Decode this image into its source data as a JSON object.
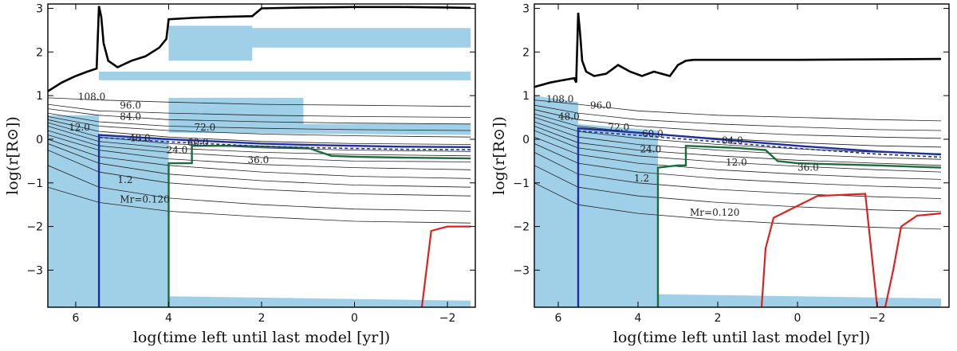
{
  "chart_data": [
    {
      "type": "line",
      "panel": "left",
      "xlabel": "log(time left until last model [yr])",
      "ylabel": "log(r[R⊙])",
      "xlim": [
        6.6,
        -2.6
      ],
      "ylim": [
        -3.85,
        3.1
      ],
      "xticks": [
        6,
        4,
        2,
        0,
        -2
      ],
      "xtick_labels": [
        "6",
        "4",
        "2",
        "0",
        "−2"
      ],
      "yticks": [
        3,
        2,
        1,
        0,
        -1,
        -2,
        -3
      ],
      "ytick_labels": [
        "3",
        "2",
        "1",
        "0",
        "−1",
        "−2",
        "−3"
      ],
      "colors": {
        "convective": "#9fd0e8",
        "surface": "#000000",
        "he_core": "#1f2e9a",
        "co_core": "#1d6b3a",
        "burning": "#e02020",
        "contour": "#222222"
      },
      "convective_zones": [
        {
          "x": [
            6.6,
            5.5,
            5.5,
            6.6
          ],
          "y": [
            0.55,
            0.55,
            -3.85,
            -3.85
          ]
        },
        {
          "x": [
            5.5,
            4.0,
            4.0,
            5.5
          ],
          "y": [
            0.1,
            0.0,
            -3.85,
            -3.85
          ]
        },
        {
          "x": [
            4.0,
            2.2,
            2.2,
            -2.5,
            -2.5,
            2.2,
            2.2,
            4.0
          ],
          "y": [
            2.6,
            2.6,
            2.55,
            2.55,
            2.1,
            2.1,
            1.8,
            1.8
          ]
        },
        {
          "x": [
            5.5,
            -2.5,
            -2.5,
            5.5
          ],
          "y": [
            1.55,
            1.55,
            1.35,
            1.35
          ]
        },
        {
          "x": [
            4.0,
            1.1,
            1.1,
            -2.5,
            -2.5,
            4.0
          ],
          "y": [
            0.95,
            0.95,
            0.35,
            0.35,
            0.1,
            0.15
          ]
        },
        {
          "x": [
            4.0,
            -2.5,
            -2.5,
            4.0
          ],
          "y": [
            -3.6,
            -3.7,
            -3.85,
            -3.85
          ]
        }
      ],
      "surface": {
        "x": [
          6.6,
          6.3,
          6.0,
          5.75,
          5.55,
          5.5,
          5.45,
          5.4,
          5.3,
          5.1,
          4.8,
          4.5,
          4.2,
          4.05,
          4.0,
          3.5,
          3.0,
          2.2,
          2.0,
          1.0,
          0.0,
          -1.0,
          -2.0,
          -2.5
        ],
        "y": [
          1.1,
          1.3,
          1.45,
          1.55,
          1.62,
          3.05,
          2.8,
          2.2,
          1.8,
          1.65,
          1.8,
          1.9,
          2.1,
          2.3,
          2.75,
          2.78,
          2.8,
          2.82,
          3.0,
          3.02,
          3.03,
          3.03,
          3.02,
          3.01
        ]
      },
      "he_core": {
        "x": [
          5.5,
          5.5,
          4.0,
          3.0,
          2.0,
          1.0,
          0.0,
          -1.0,
          -2.5
        ],
        "y": [
          -3.85,
          0.1,
          0.0,
          -0.05,
          -0.1,
          -0.13,
          -0.15,
          -0.17,
          -0.18
        ]
      },
      "co_core": {
        "x": [
          4.0,
          4.0,
          3.5,
          3.5,
          2.5,
          1.0,
          0.5,
          0.0,
          -1.0,
          -2.5
        ],
        "y": [
          -3.85,
          -0.55,
          -0.55,
          -0.15,
          -0.15,
          -0.2,
          -0.38,
          -0.4,
          -0.42,
          -0.44
        ]
      },
      "burning": {
        "x": [
          -1.45,
          -1.65,
          -2.0,
          -2.5
        ],
        "y": [
          -3.85,
          -2.1,
          -2.0,
          -2.0
        ]
      },
      "contours": [
        {
          "label": "108.0",
          "x": [
            6.6,
            5.5,
            4.0,
            2.0,
            0.0,
            -2.5
          ],
          "y": [
            0.95,
            0.9,
            0.85,
            0.8,
            0.78,
            0.75
          ]
        },
        {
          "label": "96.0",
          "x": [
            6.6,
            5.5,
            4.0,
            2.0,
            0.0,
            -2.5
          ],
          "y": [
            0.8,
            0.65,
            0.6,
            0.55,
            0.52,
            0.5
          ]
        },
        {
          "label": "84.0",
          "x": [
            6.6,
            5.5,
            4.0,
            2.0,
            0.0,
            -2.5
          ],
          "y": [
            0.7,
            0.55,
            0.45,
            0.4,
            0.37,
            0.35
          ]
        },
        {
          "label": "72.0",
          "x": [
            6.6,
            5.5,
            4.0,
            2.0,
            0.0,
            -2.5
          ],
          "y": [
            0.6,
            0.4,
            0.3,
            0.25,
            0.22,
            0.2
          ]
        },
        {
          "label": "",
          "x": [
            6.6,
            5.5,
            4.0,
            2.0,
            0.0,
            -2.5
          ],
          "y": [
            0.52,
            0.3,
            0.2,
            0.12,
            0.08,
            0.05
          ]
        },
        {
          "label": "",
          "x": [
            6.6,
            5.5,
            4.0,
            2.0,
            0.0,
            -2.5
          ],
          "y": [
            0.45,
            0.18,
            0.05,
            -0.05,
            -0.1,
            -0.12
          ]
        },
        {
          "label": "60.0",
          "x": [
            6.6,
            5.5,
            4.0,
            2.0,
            0.0,
            -2.5
          ],
          "y": [
            0.38,
            0.05,
            -0.1,
            -0.2,
            -0.25,
            -0.28
          ]
        },
        {
          "label": "48.0",
          "x": [
            6.6,
            5.5,
            4.0,
            2.0,
            0.0,
            -2.5
          ],
          "y": [
            0.3,
            -0.05,
            -0.2,
            -0.3,
            -0.35,
            -0.38
          ]
        },
        {
          "label": "24.0",
          "x": [
            6.6,
            5.5,
            4.0,
            2.0,
            0.0,
            -2.5
          ],
          "y": [
            0.2,
            -0.15,
            -0.3,
            -0.42,
            -0.5,
            -0.52
          ]
        },
        {
          "label": "36.0",
          "x": [
            6.6,
            5.5,
            4.0,
            2.0,
            0.0,
            -2.5
          ],
          "y": [
            0.1,
            -0.25,
            -0.45,
            -0.58,
            -0.65,
            -0.7
          ]
        },
        {
          "label": "12.0",
          "x": [
            6.6,
            5.5,
            4.0,
            2.0,
            0.0,
            -2.5
          ],
          "y": [
            0.0,
            -0.4,
            -0.6,
            -0.75,
            -0.85,
            -0.9
          ]
        },
        {
          "label": "",
          "x": [
            6.6,
            5.5,
            4.0,
            2.0,
            0.0,
            -2.5
          ],
          "y": [
            -0.1,
            -0.55,
            -0.8,
            -0.95,
            -1.05,
            -1.1
          ]
        },
        {
          "label": "1.2",
          "x": [
            6.6,
            5.5,
            4.0,
            2.0,
            0.0,
            -2.5
          ],
          "y": [
            -0.25,
            -0.75,
            -1.0,
            -1.15,
            -1.25,
            -1.3
          ]
        },
        {
          "label": "",
          "x": [
            6.6,
            5.5,
            4.0,
            2.0,
            0.0,
            -2.5
          ],
          "y": [
            -0.6,
            -1.1,
            -1.35,
            -1.5,
            -1.6,
            -1.65
          ]
        },
        {
          "label": "Mr=0.120",
          "x": [
            6.6,
            5.5,
            4.0,
            2.0,
            0.0,
            -2.5
          ],
          "y": [
            -1.1,
            -1.45,
            -1.65,
            -1.78,
            -1.88,
            -1.92
          ]
        }
      ],
      "contour_labels": [
        {
          "text": "108.0",
          "x": 5.95,
          "y": 0.9
        },
        {
          "text": "96.0",
          "x": 5.05,
          "y": 0.7
        },
        {
          "text": "84.0",
          "x": 5.05,
          "y": 0.45
        },
        {
          "text": "12.0",
          "x": 6.15,
          "y": 0.2
        },
        {
          "text": "72.0",
          "x": 3.45,
          "y": 0.2
        },
        {
          "text": "48.0",
          "x": 4.85,
          "y": -0.05
        },
        {
          "text": "60.0",
          "x": 3.6,
          "y": -0.15
        },
        {
          "text": "24.0",
          "x": 4.05,
          "y": -0.32
        },
        {
          "text": "36.0",
          "x": 2.3,
          "y": -0.55
        },
        {
          "text": "1.2",
          "x": 5.1,
          "y": -1.0
        },
        {
          "text": "Mr=0.120",
          "x": 5.05,
          "y": -1.45
        }
      ]
    },
    {
      "type": "line",
      "panel": "right",
      "xlabel": "log(time left until last model [yr])",
      "ylabel": "log(r[R⊙])",
      "xlim": [
        6.6,
        -3.8
      ],
      "ylim": [
        -3.85,
        3.1
      ],
      "xticks": [
        6,
        4,
        2,
        0,
        -2
      ],
      "xtick_labels": [
        "6",
        "4",
        "2",
        "0",
        "−2"
      ],
      "yticks": [
        3,
        2,
        1,
        0,
        -1,
        -2,
        -3
      ],
      "ytick_labels": [
        "3",
        "2",
        "1",
        "0",
        "−1",
        "−2",
        "−3"
      ],
      "colors": {
        "convective": "#9fd0e8",
        "surface": "#000000",
        "he_core": "#1f2e9a",
        "co_core": "#1d6b3a",
        "burning": "#e02020",
        "contour": "#222222"
      },
      "convective_zones": [
        {
          "x": [
            6.6,
            5.5,
            5.5,
            6.6
          ],
          "y": [
            1.0,
            0.85,
            -3.85,
            -3.85
          ]
        },
        {
          "x": [
            5.5,
            3.5,
            3.5,
            5.5
          ],
          "y": [
            0.35,
            0.2,
            -3.85,
            -3.85
          ]
        },
        {
          "x": [
            3.5,
            -3.6,
            -3.6,
            3.5
          ],
          "y": [
            -3.55,
            -3.65,
            -3.85,
            -3.85
          ]
        }
      ],
      "surface": {
        "x": [
          6.6,
          6.2,
          5.9,
          5.6,
          5.55,
          5.5,
          5.45,
          5.4,
          5.3,
          5.1,
          4.8,
          4.5,
          4.2,
          3.9,
          3.6,
          3.2,
          3.0,
          2.8,
          2.6,
          2.0,
          0.0,
          -2.0,
          -3.6
        ],
        "y": [
          1.2,
          1.3,
          1.35,
          1.4,
          1.3,
          2.9,
          2.4,
          1.8,
          1.55,
          1.45,
          1.5,
          1.7,
          1.55,
          1.45,
          1.55,
          1.45,
          1.7,
          1.8,
          1.82,
          1.82,
          1.82,
          1.83,
          1.84
        ]
      },
      "he_core": {
        "x": [
          5.5,
          5.5,
          4.0,
          2.0,
          0.0,
          -2.0,
          -3.6
        ],
        "y": [
          -3.85,
          0.25,
          0.15,
          0.0,
          -0.15,
          -0.28,
          -0.35
        ]
      },
      "co_core": {
        "x": [
          3.5,
          3.5,
          3.0,
          2.8,
          2.8,
          1.5,
          0.8,
          0.5,
          0.0,
          -2.0,
          -3.6
        ],
        "y": [
          -3.85,
          -0.65,
          -0.6,
          -0.6,
          -0.15,
          -0.2,
          -0.25,
          -0.5,
          -0.55,
          -0.6,
          -0.65
        ]
      },
      "burning": {
        "x": [
          0.9,
          0.8,
          0.6,
          -0.5,
          -1.7,
          -2.0,
          -2.2,
          -2.4,
          -2.6,
          -3.0,
          -3.6
        ],
        "y": [
          -3.85,
          -2.5,
          -1.8,
          -1.3,
          -1.25,
          -3.85,
          -3.85,
          -3.0,
          -2.0,
          -1.75,
          -1.7
        ]
      },
      "contours": [
        {
          "label": "108.0",
          "x": [
            6.6,
            5.5,
            4.0,
            2.0,
            0.0,
            -2.0,
            -3.6
          ],
          "y": [
            0.9,
            0.8,
            0.65,
            0.55,
            0.5,
            0.45,
            0.42
          ]
        },
        {
          "label": "96.0",
          "x": [
            6.6,
            5.5,
            4.0,
            2.0,
            0.0,
            -2.0,
            -3.6
          ],
          "y": [
            0.78,
            0.6,
            0.45,
            0.35,
            0.28,
            0.22,
            0.2
          ]
        },
        {
          "label": "",
          "x": [
            6.6,
            5.5,
            4.0,
            2.0,
            0.0,
            -2.0,
            -3.6
          ],
          "y": [
            0.68,
            0.45,
            0.3,
            0.18,
            0.1,
            0.05,
            0.02
          ]
        },
        {
          "label": "48.0",
          "x": [
            6.6,
            5.5,
            4.0,
            2.0,
            0.0,
            -2.0,
            -3.6
          ],
          "y": [
            0.58,
            0.3,
            0.15,
            0.02,
            -0.08,
            -0.15,
            -0.18
          ]
        },
        {
          "label": "72.0",
          "x": [
            6.6,
            5.5,
            4.0,
            2.0,
            0.0,
            -2.0,
            -3.6
          ],
          "y": [
            0.5,
            0.18,
            0.02,
            -0.12,
            -0.22,
            -0.3,
            -0.33
          ]
        },
        {
          "label": "60.0",
          "x": [
            6.6,
            5.5,
            4.0,
            2.0,
            0.0,
            -2.0,
            -3.6
          ],
          "y": [
            0.4,
            0.05,
            -0.12,
            -0.25,
            -0.35,
            -0.42,
            -0.46
          ]
        },
        {
          "label": "24.0",
          "x": [
            6.6,
            5.5,
            4.0,
            2.0,
            0.0,
            -2.0,
            -3.6
          ],
          "y": [
            0.3,
            -0.08,
            -0.25,
            -0.38,
            -0.48,
            -0.55,
            -0.6
          ]
        },
        {
          "label": "36.0",
          "x": [
            6.6,
            5.5,
            4.0,
            2.0,
            0.0,
            -2.0,
            -3.6
          ],
          "y": [
            0.2,
            -0.2,
            -0.38,
            -0.52,
            -0.62,
            -0.7,
            -0.75
          ]
        },
        {
          "label": "12.0",
          "x": [
            6.6,
            5.5,
            4.0,
            2.0,
            0.0,
            -2.0,
            -3.6
          ],
          "y": [
            0.05,
            -0.35,
            -0.55,
            -0.7,
            -0.8,
            -0.88,
            -0.92
          ]
        },
        {
          "label": "",
          "x": [
            6.6,
            5.5,
            4.0,
            2.0,
            0.0,
            -2.0,
            -3.6
          ],
          "y": [
            -0.1,
            -0.55,
            -0.75,
            -0.9,
            -1.0,
            -1.08,
            -1.12
          ]
        },
        {
          "label": "1.2",
          "x": [
            6.6,
            5.5,
            4.0,
            2.0,
            0.0,
            -2.0,
            -3.6
          ],
          "y": [
            -0.3,
            -0.8,
            -1.0,
            -1.15,
            -1.25,
            -1.32,
            -1.36
          ]
        },
        {
          "label": "",
          "x": [
            6.6,
            5.5,
            4.0,
            2.0,
            0.0,
            -2.0,
            -3.6
          ],
          "y": [
            -0.6,
            -1.1,
            -1.3,
            -1.45,
            -1.55,
            -1.62,
            -1.66
          ]
        },
        {
          "label": "Mr=0.120",
          "x": [
            6.6,
            5.5,
            4.0,
            2.0,
            0.0,
            -2.0,
            -3.6
          ],
          "y": [
            -1.0,
            -1.5,
            -1.7,
            -1.85,
            -1.95,
            -2.02,
            -2.06
          ]
        }
      ],
      "contour_labels": [
        {
          "text": "108.0",
          "x": 6.3,
          "y": 0.85
        },
        {
          "text": "96.0",
          "x": 5.2,
          "y": 0.7
        },
        {
          "text": "48.0",
          "x": 6.0,
          "y": 0.45
        },
        {
          "text": "72.0",
          "x": 4.75,
          "y": 0.2
        },
        {
          "text": "60.0",
          "x": 3.9,
          "y": 0.05
        },
        {
          "text": "84.0",
          "x": 1.9,
          "y": -0.1
        },
        {
          "text": "24.0",
          "x": 3.95,
          "y": -0.3
        },
        {
          "text": "12.0",
          "x": 1.8,
          "y": -0.6
        },
        {
          "text": "36.0",
          "x": 0.0,
          "y": -0.72
        },
        {
          "text": "1.2",
          "x": 4.1,
          "y": -0.97
        },
        {
          "text": "Mr=0.120",
          "x": 2.7,
          "y": -1.75
        }
      ]
    }
  ]
}
